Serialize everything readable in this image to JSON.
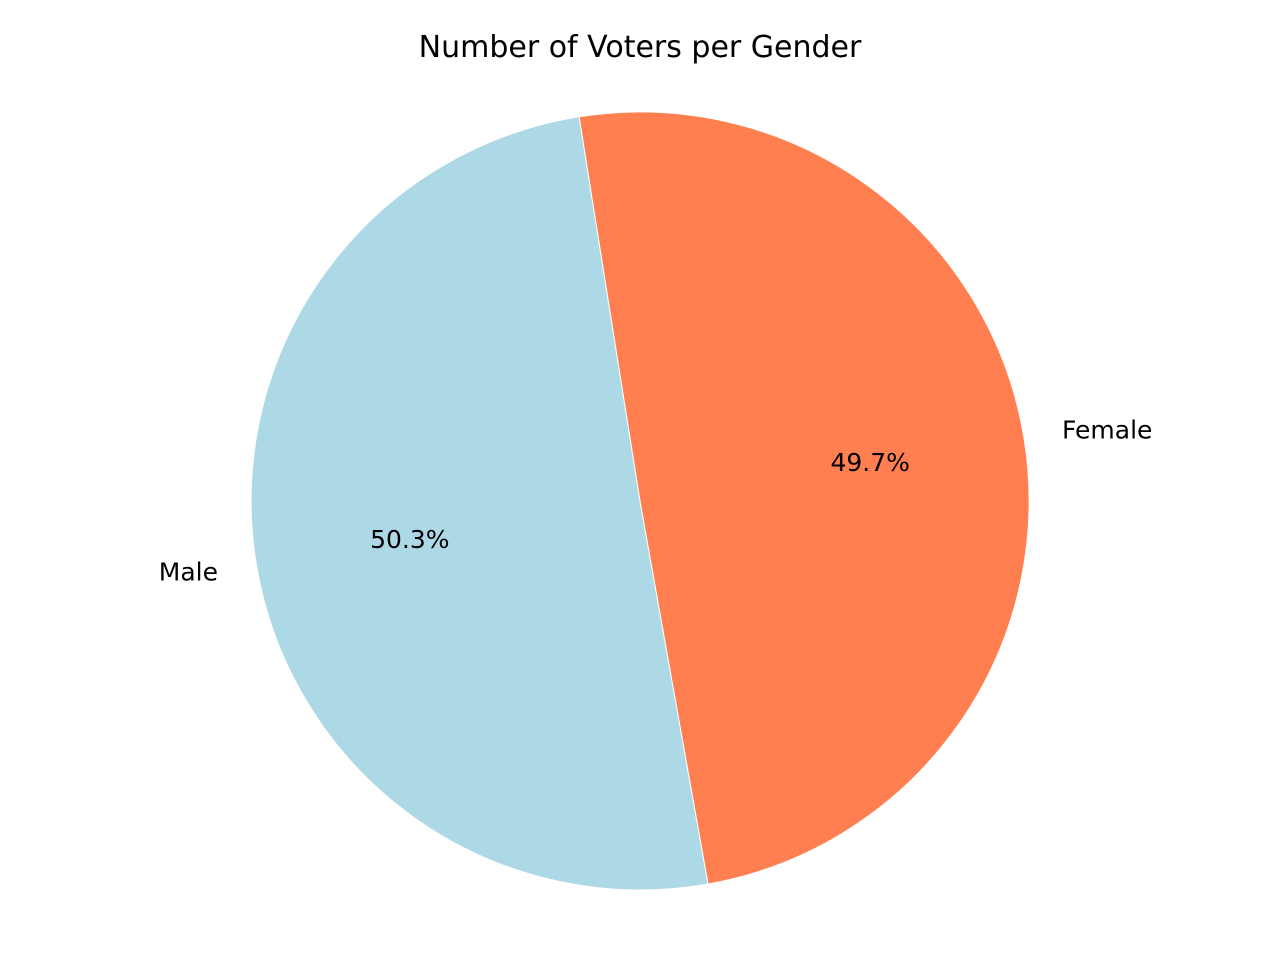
{
  "chart_data": {
    "type": "pie",
    "title": "Number of Voters per Gender",
    "categories": [
      "Male",
      "Female"
    ],
    "values": [
      50.3,
      49.7
    ],
    "labels": [
      "50.3%",
      "49.7%"
    ],
    "colors": [
      "#add8e6",
      "#ff7f50"
    ],
    "start_angle_deg": 99
  }
}
